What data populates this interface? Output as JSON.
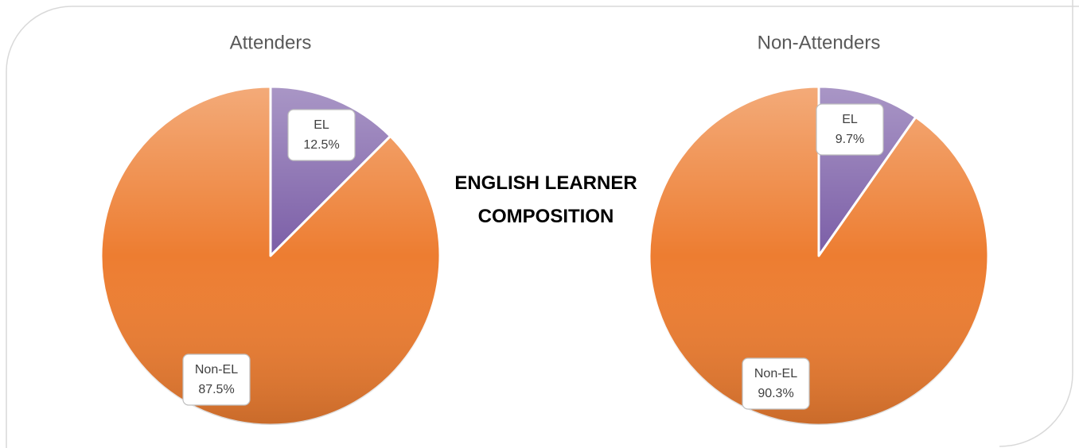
{
  "title": "ENGLISH LEARNER COMPOSITION",
  "chart_data": [
    {
      "type": "pie",
      "title": "Attenders",
      "categories": [
        "EL",
        "Non-EL"
      ],
      "values": [
        12.5,
        87.5
      ],
      "value_labels": [
        "12.5%",
        "87.5%"
      ],
      "colors": [
        "#7b5ea7",
        "#ed7d31"
      ]
    },
    {
      "type": "pie",
      "title": "Non-Attenders",
      "categories": [
        "EL",
        "Non-EL"
      ],
      "values": [
        9.7,
        90.3
      ],
      "value_labels": [
        "9.7%",
        "90.3%"
      ],
      "colors": [
        "#7b5ea7",
        "#ed7d31"
      ]
    }
  ]
}
